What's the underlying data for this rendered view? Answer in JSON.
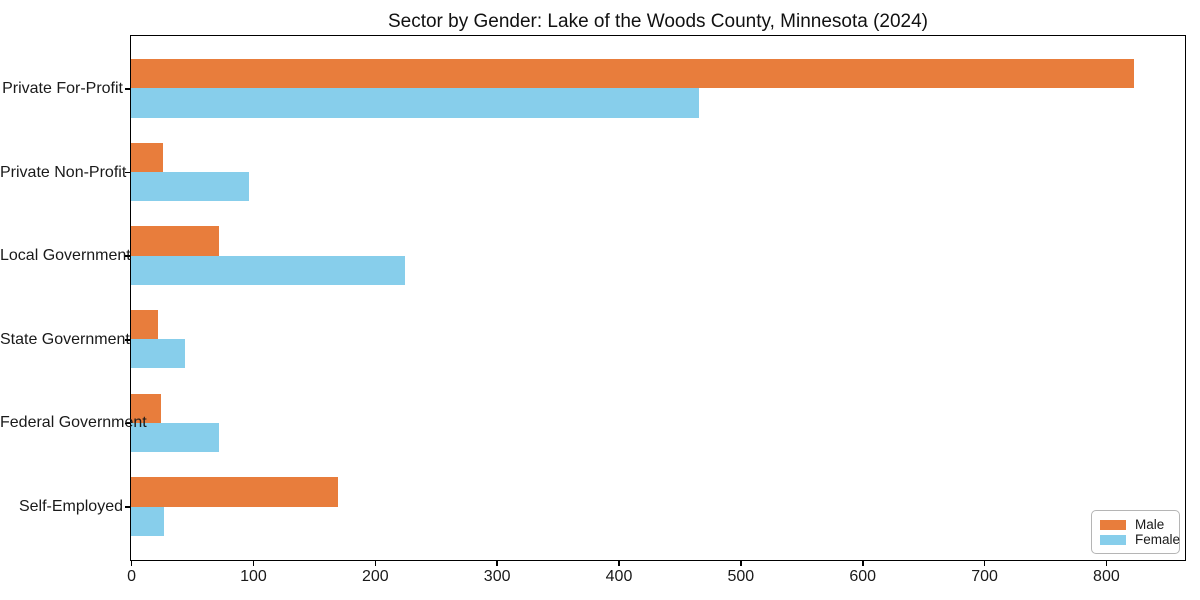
{
  "title": "Sector by Gender: Lake of the Woods County, Minnesota (2024)",
  "chart_data": {
    "type": "bar",
    "orientation": "horizontal",
    "title": "Sector by Gender: Lake of the Woods County, Minnesota (2024)",
    "categories": [
      "Private For-Profit",
      "Private Non-Profit",
      "Local Government",
      "State Government",
      "Federal Government",
      "Self-Employed"
    ],
    "series": [
      {
        "name": "Male",
        "color": "#e87d3c",
        "values": [
          823,
          26,
          72,
          22,
          25,
          170
        ]
      },
      {
        "name": "Female",
        "color": "#87ceeb",
        "values": [
          466,
          97,
          225,
          44,
          72,
          27
        ]
      }
    ],
    "xlabel": "",
    "ylabel": "",
    "xlim": [
      0,
      864
    ],
    "xticks": [
      0,
      100,
      200,
      300,
      400,
      500,
      600,
      700,
      800
    ],
    "grid": false,
    "legend_position": "lower right",
    "bar_height_fraction": 0.35
  },
  "colors": {
    "male": "#e87d3c",
    "female": "#87ceeb",
    "spine": "#000000",
    "background": "#ffffff",
    "legend_border": "#b5b5b5"
  }
}
